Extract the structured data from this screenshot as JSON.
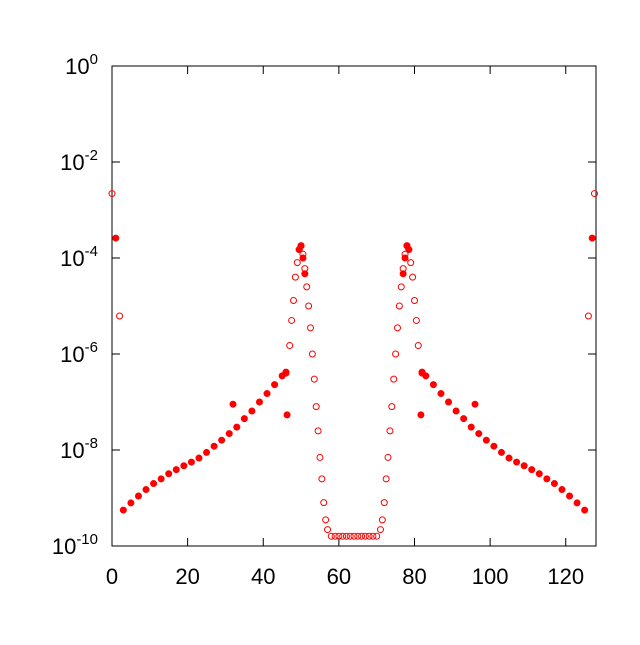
{
  "chart_data": {
    "type": "scatter",
    "log_y": true,
    "xlim": [
      0,
      128
    ],
    "xticks": [
      0,
      20,
      40,
      60,
      80,
      100,
      120
    ],
    "ylim": [
      1e-10,
      1
    ],
    "yticks": [
      {
        "value": 1,
        "base": "10",
        "exponent": "0"
      },
      {
        "value": 0.01,
        "base": "10",
        "exponent": "-2"
      },
      {
        "value": 0.0001,
        "base": "10",
        "exponent": "-4"
      },
      {
        "value": 1e-06,
        "base": "10",
        "exponent": "-6"
      },
      {
        "value": 1e-08,
        "base": "10",
        "exponent": "-8"
      },
      {
        "value": 1e-10,
        "base": "10",
        "exponent": "-10"
      }
    ],
    "series": [
      {
        "color": "#ff0000",
        "marker": "filled",
        "x": [
          1,
          3,
          5,
          7,
          9,
          11,
          13,
          15,
          17,
          19,
          21,
          23,
          25,
          27,
          29,
          31,
          33,
          35,
          37,
          39,
          41,
          43,
          45,
          46,
          32,
          46.3,
          49.5,
          50,
          50.5,
          51,
          127,
          125,
          123,
          121,
          119,
          117,
          115,
          113,
          111,
          109,
          107,
          105,
          103,
          101,
          99,
          97,
          95,
          93,
          91,
          89,
          87,
          85,
          83,
          82,
          96,
          81.7,
          78.5,
          78,
          77.5,
          77
        ],
        "values": [
          0.00026,
          5.6e-10,
          7.9e-10,
          1.1e-09,
          1.5e-09,
          2e-09,
          2.5e-09,
          3.2e-09,
          3.9e-09,
          4.7e-09,
          5.6e-09,
          6.8e-09,
          8.9e-09,
          1.2e-08,
          1.6e-08,
          2.2e-08,
          3e-08,
          4.5e-08,
          6.5e-08,
          1e-07,
          1.5e-07,
          2.3e-07,
          3.5e-07,
          4.2e-07,
          9e-08,
          5.4e-08,
          0.00015,
          0.00018,
          0.0001,
          4.7e-05,
          0.00026,
          5.6e-10,
          7.9e-10,
          1.1e-09,
          1.5e-09,
          2e-09,
          2.5e-09,
          3.2e-09,
          3.9e-09,
          4.7e-09,
          5.6e-09,
          6.8e-09,
          8.9e-09,
          1.2e-08,
          1.6e-08,
          2.2e-08,
          3e-08,
          4.5e-08,
          6.5e-08,
          1e-07,
          1.5e-07,
          2.3e-07,
          3.5e-07,
          4.2e-07,
          9e-08,
          5.4e-08,
          0.00015,
          0.00018,
          0.0001,
          4.7e-05
        ]
      },
      {
        "color": "#ff0000",
        "marker": "open",
        "x": [
          0,
          2,
          46,
          47,
          47.5,
          48,
          48.5,
          49,
          49.5,
          50,
          50.5,
          51,
          51.5,
          52,
          52.5,
          53,
          53.5,
          54,
          54.5,
          55,
          55.5,
          56,
          56.5,
          57,
          58,
          59,
          60,
          61,
          62,
          63,
          64,
          65,
          66,
          67,
          68,
          69,
          70,
          71,
          71.5,
          72,
          72.5,
          73,
          73.5,
          74,
          74.5,
          75,
          75.5,
          76,
          76.5,
          77,
          77.5,
          78,
          78.5,
          79,
          79.5,
          80,
          80.5,
          81,
          82,
          126,
          127.6
        ],
        "values": [
          0.0022,
          6.2e-06,
          4e-07,
          1.5e-06,
          5e-06,
          1.3e-05,
          4e-05,
          8e-05,
          0.00015,
          0.00018,
          0.00012,
          6e-05,
          2.5e-05,
          1e-05,
          3.5e-06,
          1e-06,
          3e-07,
          8e-08,
          2.5e-08,
          7e-09,
          2.5e-09,
          8e-10,
          3.5e-10,
          2.2e-10,
          1.6e-10,
          1.6e-10,
          1.6e-10,
          1.6e-10,
          1.6e-10,
          1.6e-10,
          1.6e-10,
          1.6e-10,
          1.6e-10,
          1.6e-10,
          1.6e-10,
          1.6e-10,
          1.6e-10,
          2.2e-10,
          3.5e-10,
          8e-10,
          2.5e-09,
          7e-09,
          2.5e-08,
          8e-08,
          3e-07,
          1e-06,
          3.5e-06,
          1e-05,
          2.5e-05,
          6e-05,
          0.00012,
          0.00018,
          0.00015,
          8e-05,
          4e-05,
          1.3e-05,
          5e-06,
          1.5e-06,
          4e-07,
          6.2e-06,
          0.0022
        ]
      }
    ]
  }
}
